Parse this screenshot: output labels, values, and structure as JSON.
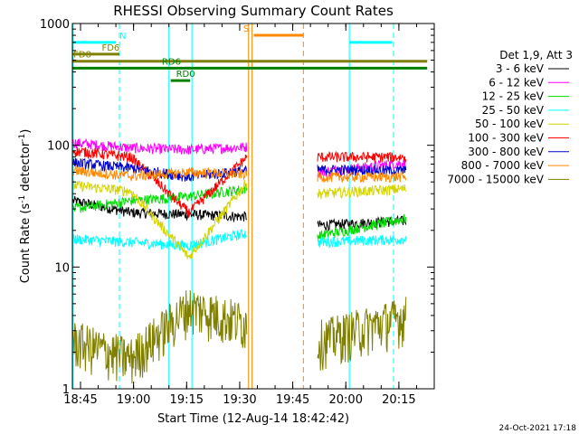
{
  "chart_data": {
    "type": "line",
    "title": "RHESSI Observing Summary Count Rates",
    "xlabel": "Start Time (12-Aug-14 18:42:42)",
    "ylabel_main": "Count Rate (s",
    "ylabel_sup1": "-1",
    "ylabel_mid": " detector",
    "ylabel_sup2": "-1",
    "ylabel_end": ")",
    "yscale": "log",
    "ylim": [
      1,
      1000
    ],
    "y_ticks": [
      {
        "v": 1,
        "label": "1"
      },
      {
        "v": 10,
        "label": "10"
      },
      {
        "v": 100,
        "label": "100"
      },
      {
        "v": 1000,
        "label": "1000"
      }
    ],
    "xlim_min": [
      42.7,
      145
    ],
    "x_ticks": [
      {
        "m": 45,
        "label": "18:45"
      },
      {
        "m": 60,
        "label": "19:00"
      },
      {
        "m": 75,
        "label": "19:15"
      },
      {
        "m": 90,
        "label": "19:30"
      },
      {
        "m": 105,
        "label": "19:45"
      },
      {
        "m": 120,
        "label": "20:00"
      },
      {
        "m": 135,
        "label": "20:15"
      }
    ],
    "footer_date": "24-Oct-2021 17:18",
    "legend_header": "Det 1,9, Att 3",
    "series": [
      {
        "name": "3 - 6 keV",
        "color": "#000000",
        "s1": [
          35,
          28,
          27,
          26
        ],
        "s2": [
          22,
          24
        ]
      },
      {
        "name": "6 - 12 keV",
        "color": "#ff00ff",
        "s1": [
          105,
          95,
          92,
          97
        ],
        "s2": [
          60,
          72
        ]
      },
      {
        "name": "12 - 25 keV",
        "color": "#00dd00",
        "s1": [
          30,
          35,
          38,
          44
        ],
        "s2": [
          18,
          25
        ]
      },
      {
        "name": "25 - 50 keV",
        "color": "#00ffff",
        "s1": [
          17,
          16,
          15,
          19
        ],
        "s2": [
          16,
          17
        ]
      },
      {
        "name": "50 - 100 keV",
        "color": "#d4d400",
        "s1": [
          47,
          42,
          12,
          50
        ],
        "s2": [
          40,
          44
        ]
      },
      {
        "name": "100 - 300 keV",
        "color": "#ff0000",
        "s1": [
          90,
          80,
          28,
          80
        ],
        "s2": [
          80,
          80
        ]
      },
      {
        "name": "300 - 800 keV",
        "color": "#0000cc",
        "s1": [
          72,
          65,
          55,
          62
        ],
        "s2": [
          63,
          62
        ]
      },
      {
        "name": "800 - 7000 keV",
        "color": "#ff8800",
        "s1": [
          62,
          56,
          60,
          58
        ],
        "s2": [
          55,
          55
        ]
      },
      {
        "name": "7000 - 15000 keV",
        "color": "#808000",
        "s1": [
          2.5,
          1.8,
          4.8,
          3.5
        ],
        "s2": [
          2.5,
          4.0
        ]
      }
    ],
    "flags": [
      {
        "label": "N",
        "color": "#00ffff",
        "y": 700,
        "x0": 42.7,
        "x1": 55,
        "label_x": 56
      },
      {
        "label": "N",
        "color": "#00ffff",
        "y": 700,
        "x0": 121,
        "x1": 133,
        "label_x": null
      },
      {
        "label": "FD6",
        "color": "#808000",
        "y": 560,
        "x0": 42.7,
        "x1": 56,
        "label_x": 51
      },
      {
        "label": "FD8",
        "color": "#808000",
        "y": 490,
        "x0": 42.7,
        "x1": 143,
        "label_x": 43
      },
      {
        "label": "RD6",
        "color": "#008000",
        "y": 430,
        "x0": 42.7,
        "x1": 143,
        "label_x": 68
      },
      {
        "label": "RD0",
        "color": "#008000",
        "y": 340,
        "x0": 70.5,
        "x1": 76,
        "label_x": 72
      },
      {
        "label": "S",
        "color": "#ff8800",
        "y": 800,
        "x0": 94,
        "x1": 108,
        "label_x": 91
      }
    ],
    "vlines": [
      {
        "x": 42.9,
        "color": "#00ffff",
        "dashed": false
      },
      {
        "x": 56,
        "color": "#00ffff",
        "dashed": true
      },
      {
        "x": 70,
        "color": "#00ffff",
        "dashed": false
      },
      {
        "x": 76.5,
        "color": "#00ffff",
        "dashed": false
      },
      {
        "x": 92.5,
        "color": "#ff8800",
        "dashed": false
      },
      {
        "x": 93.5,
        "color": "#ff8800",
        "dashed": false
      },
      {
        "x": 108,
        "color": "#ff8800",
        "dashed": true
      },
      {
        "x": 121,
        "color": "#00ffff",
        "dashed": false
      },
      {
        "x": 133.5,
        "color": "#00ffff",
        "dashed": true
      }
    ]
  }
}
